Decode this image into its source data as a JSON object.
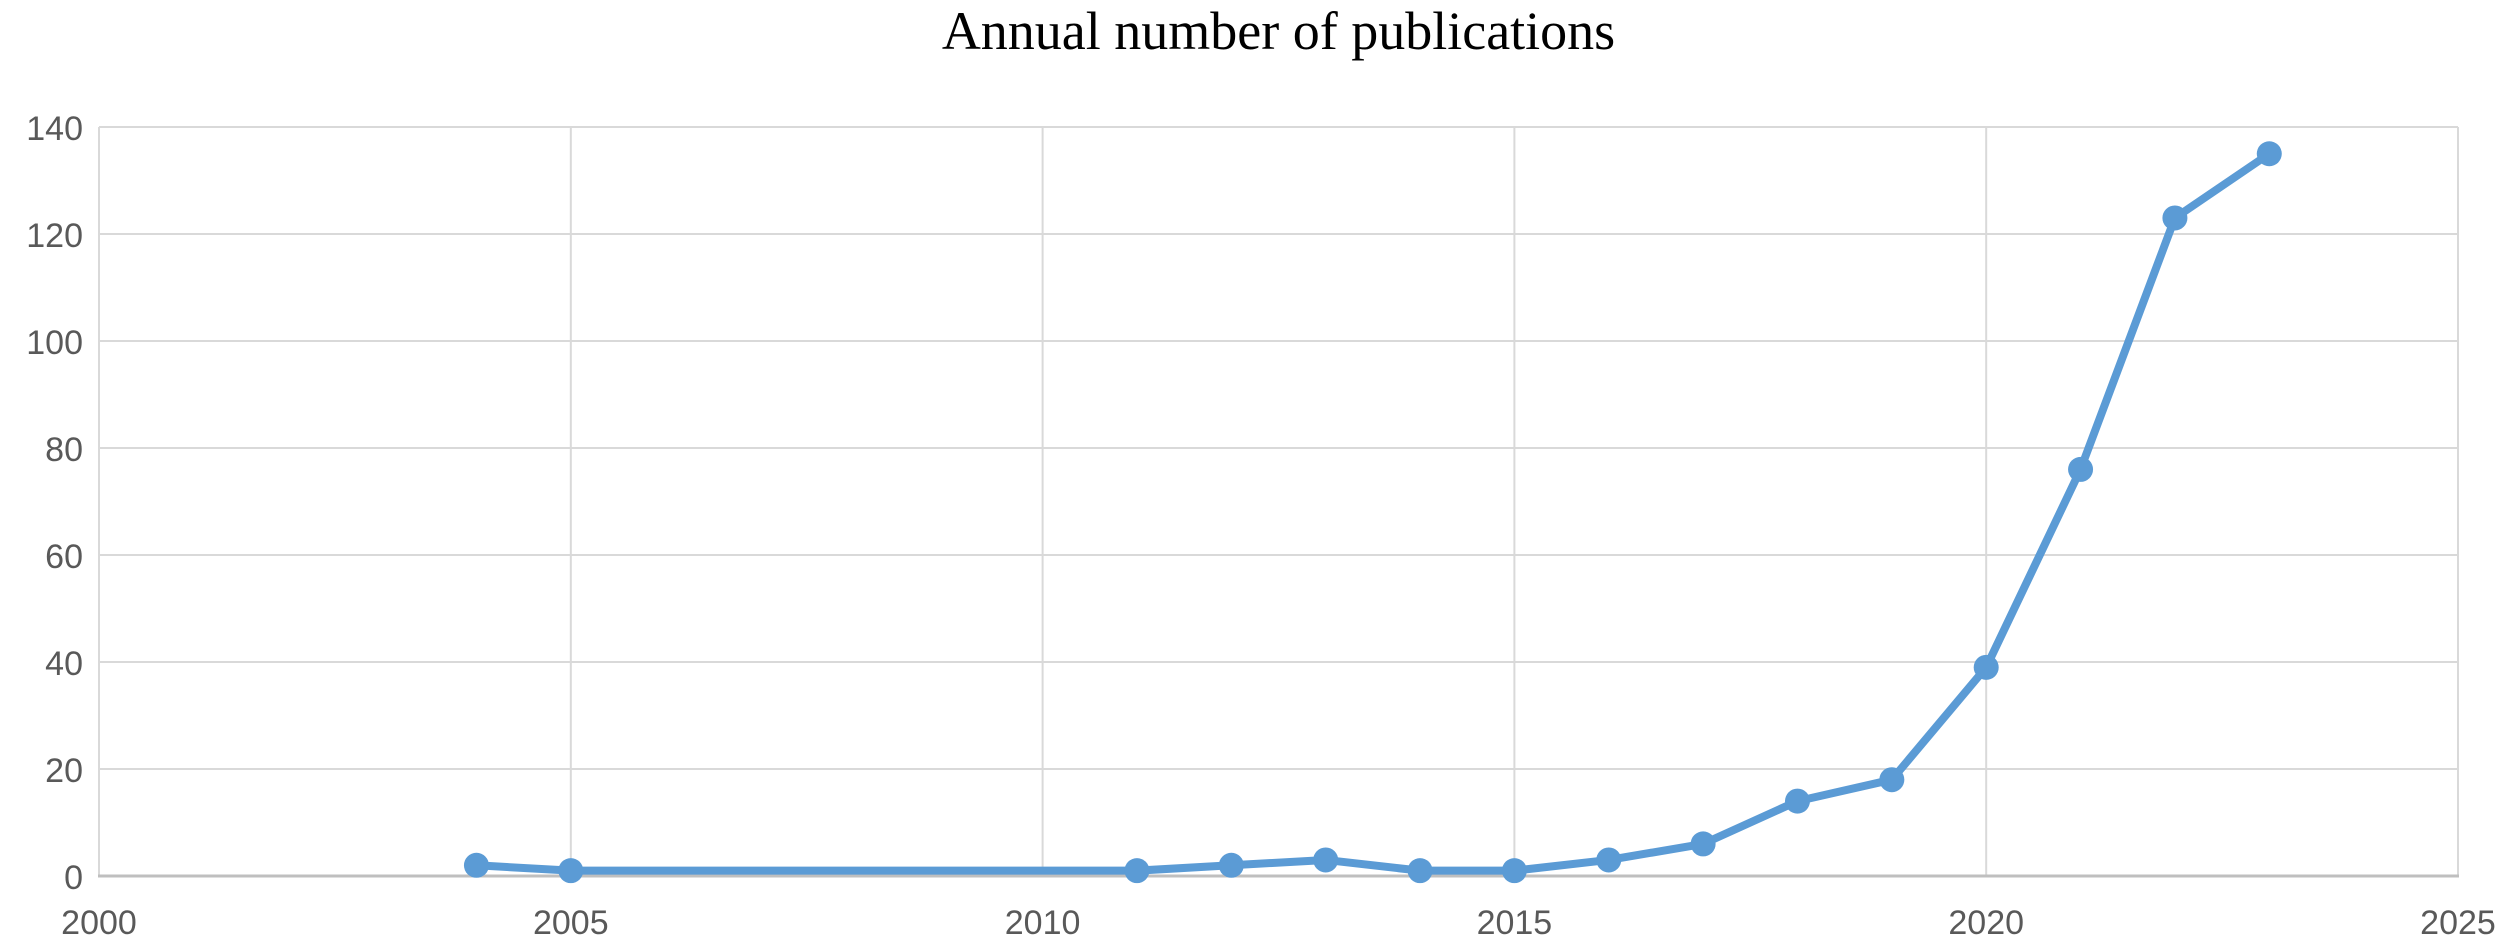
{
  "chart_data": {
    "type": "line",
    "title": "Annual number of publications",
    "xlabel": "",
    "ylabel": "",
    "x": [
      2004,
      2005,
      2011,
      2012,
      2013,
      2014,
      2015,
      2016,
      2017,
      2018,
      2019,
      2020,
      2021,
      2022,
      2023
    ],
    "values": [
      2,
      1,
      1,
      2,
      3,
      1,
      1,
      3,
      6,
      14,
      18,
      39,
      76,
      123,
      135
    ],
    "series_name": "Annual number of publications",
    "xlim": [
      2000,
      2025
    ],
    "ylim": [
      0,
      140
    ],
    "x_ticks": [
      2000,
      2005,
      2010,
      2015,
      2020,
      2025
    ],
    "y_ticks": [
      0,
      20,
      40,
      60,
      80,
      100,
      120,
      140
    ],
    "grid": true,
    "legend": "none",
    "colors": {
      "line": "#5B9BD5",
      "marker": "#5B9BD5",
      "gridline": "#D9D9D9",
      "axis_line": "#BFBFBF",
      "tick_label": "#595959",
      "title": "#000000"
    }
  }
}
